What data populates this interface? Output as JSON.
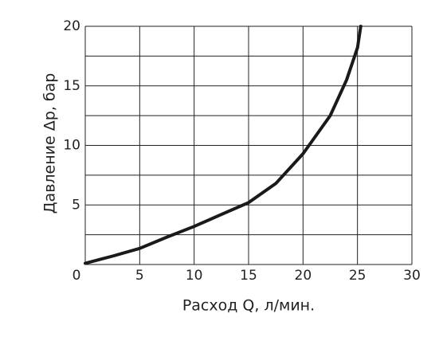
{
  "chart_data": {
    "type": "line",
    "x_label": "Расход Q, л/мин.",
    "y_label": "Давление Δp, бар",
    "x": [
      0,
      2.5,
      5,
      7.5,
      10,
      12.5,
      15,
      17.5,
      20,
      22.5,
      24,
      25,
      25.3
    ],
    "values": [
      0.1,
      0.7,
      1.35,
      2.3,
      3.2,
      4.2,
      5.2,
      6.8,
      9.3,
      12.5,
      15.5,
      18.2,
      20
    ],
    "color": "#1a1a1a",
    "xlim": [
      0,
      30
    ],
    "ylim": [
      0,
      20
    ],
    "xticks": [
      0,
      5,
      10,
      15,
      20,
      25,
      30
    ],
    "yticks": [
      5,
      10,
      15,
      20
    ],
    "ygrid": [
      0,
      2.5,
      5,
      7.5,
      10,
      12.5,
      15,
      17.5,
      20
    ],
    "grid": true
  }
}
